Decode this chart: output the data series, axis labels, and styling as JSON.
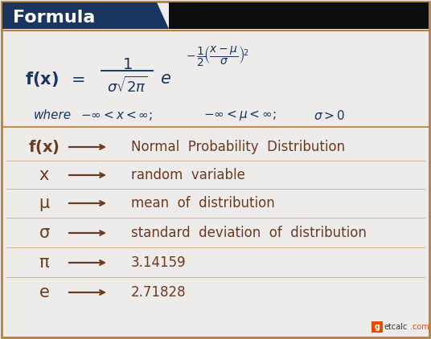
{
  "bg_color": "#eeeceb",
  "border_color": "#b5813a",
  "header_bg": "#1a3560",
  "header_text": "Formula",
  "header_text_color": "#ffffff",
  "formula_color": "#1a3560",
  "body_text_color": "#6b3a1f",
  "where_color": "#1a3560",
  "arrow_color": "#6b3a1f",
  "black_bar": "#0d0d0d",
  "rows": [
    {
      "symbol": "f(x)",
      "desc": "Normal  Probability  Distribution"
    },
    {
      "symbol": "x",
      "desc": "random  variable"
    },
    {
      "symbol": "μ",
      "desc": "mean  of  distribution"
    },
    {
      "symbol": "σ",
      "desc": "standard  deviation  of  distribution"
    },
    {
      "symbol": "π",
      "desc": "3.14159"
    },
    {
      "symbol": "e",
      "desc": "2.71828"
    }
  ],
  "fig_w": 5.36,
  "fig_h": 4.22,
  "dpi": 100
}
